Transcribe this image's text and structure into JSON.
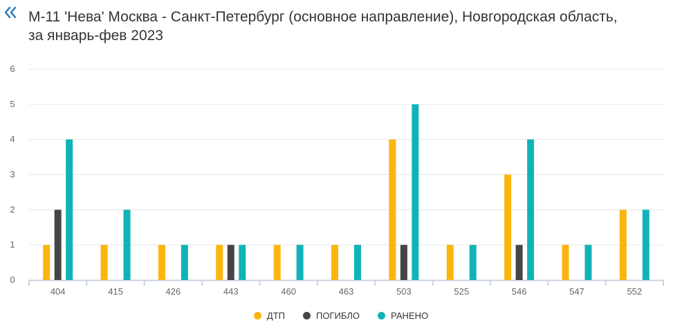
{
  "header": {
    "back_icon": "double-chevron-left-icon",
    "title_line1": "М-11 'Нева' Москва - Санкт-Петербург (основное направление), Новгородская область,",
    "title_line2": "за январь-фев 2023"
  },
  "colors": {
    "dtp": "#fbb50f",
    "pogiblo": "#454545",
    "raneno": "#10b3b8",
    "grid": "#e6e6e6",
    "axis": "#c9d3e0",
    "tick_text": "#666666"
  },
  "chart_data": {
    "type": "bar",
    "categories": [
      "404",
      "415",
      "426",
      "443",
      "460",
      "463",
      "503",
      "525",
      "546",
      "547",
      "552"
    ],
    "series": [
      {
        "name": "ДТП",
        "values": [
          1,
          1,
          1,
          1,
          1,
          1,
          4,
          1,
          3,
          1,
          2
        ]
      },
      {
        "name": "ПОГИБЛО",
        "values": [
          2,
          0,
          0,
          1,
          0,
          0,
          1,
          0,
          1,
          0,
          0
        ]
      },
      {
        "name": "РАНЕНО",
        "values": [
          4,
          2,
          1,
          1,
          1,
          1,
          5,
          1,
          4,
          1,
          2
        ]
      }
    ],
    "yticks": [
      "0",
      "1",
      "2",
      "3",
      "4",
      "5",
      "6"
    ],
    "ylim": [
      0,
      6
    ],
    "grid": true,
    "legend": "bottom-center"
  }
}
